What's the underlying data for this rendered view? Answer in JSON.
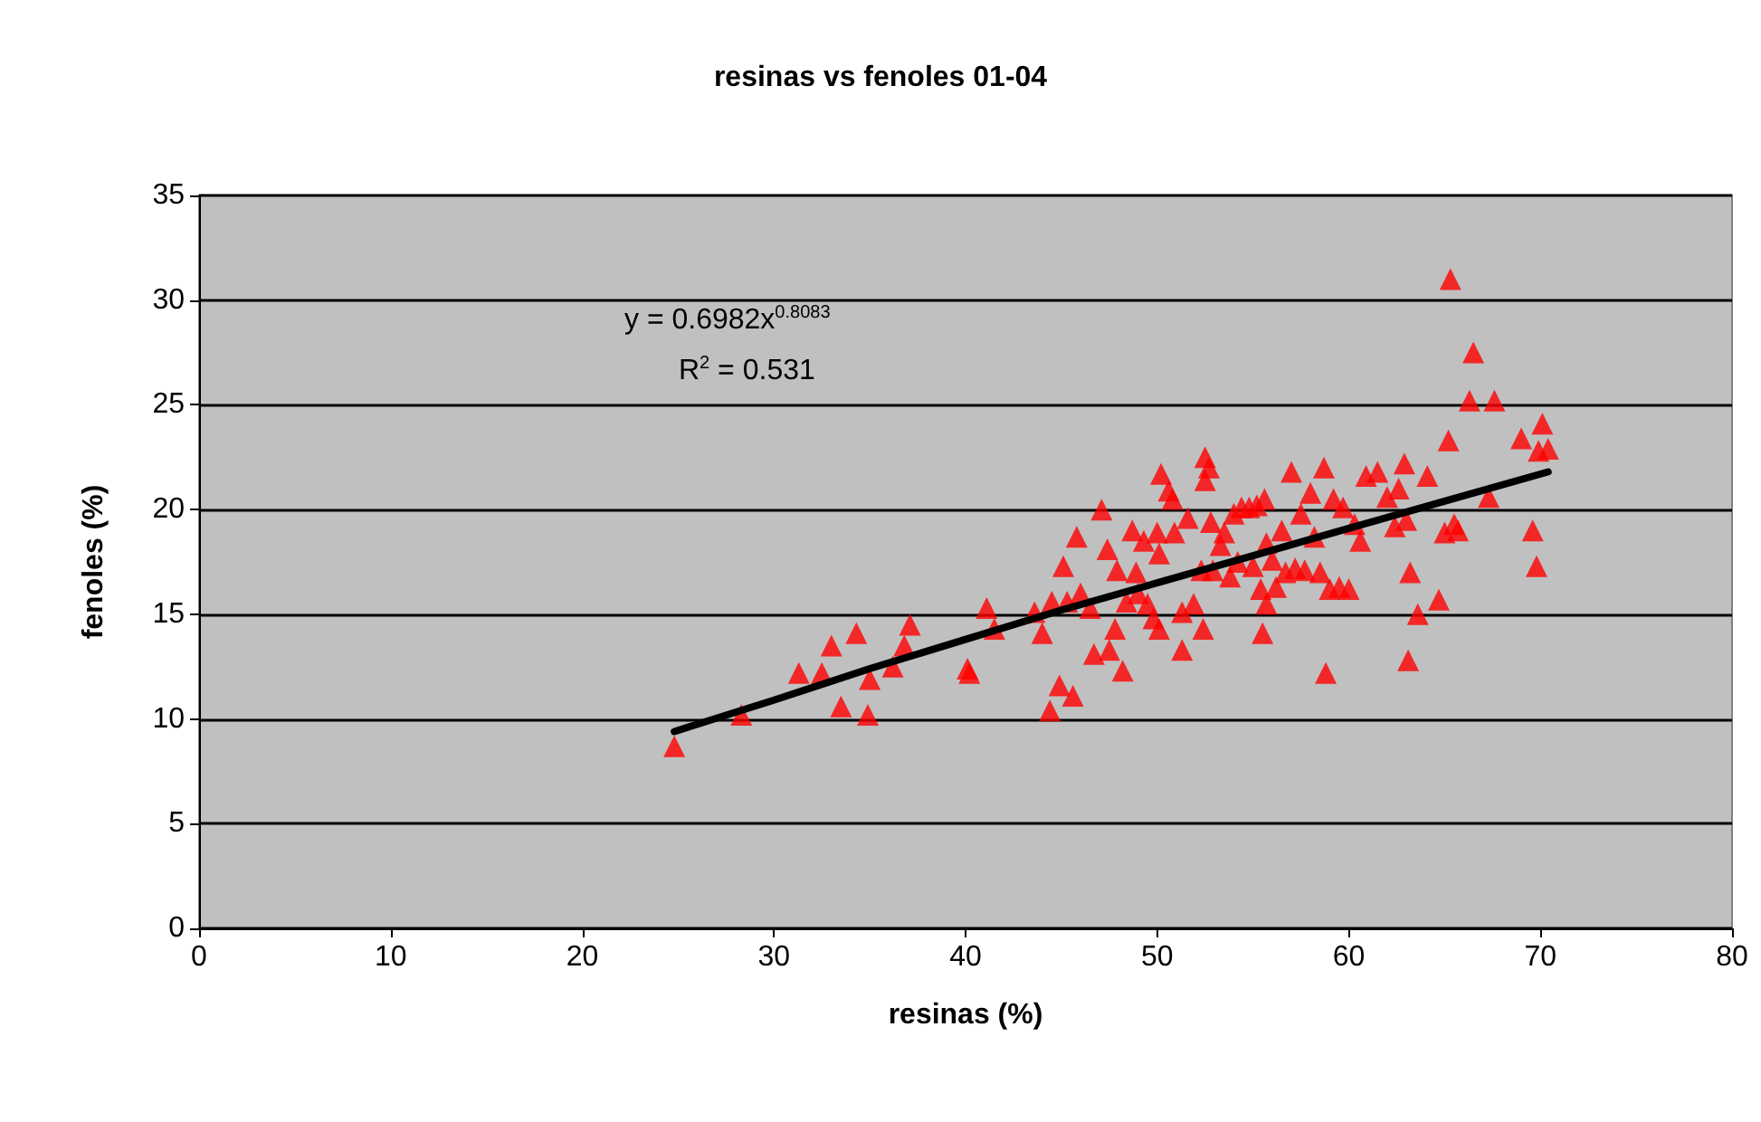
{
  "chart_data": {
    "type": "scatter",
    "title": "resinas vs fenoles 01-04",
    "xlabel": "resinas (%)",
    "ylabel": "fenoles (%)",
    "xlim": [
      0,
      80
    ],
    "xticks": [
      0,
      10,
      20,
      30,
      40,
      50,
      60,
      70,
      80
    ],
    "ylim": [
      0,
      35
    ],
    "yticks": [
      0,
      5,
      10,
      15,
      20,
      25,
      30,
      35
    ],
    "grid": "y",
    "marker": "triangle",
    "annotations": [
      "y = 0.6982x$^{0.8083}$",
      "R$^{2}$ = 0.531"
    ],
    "series": [
      {
        "color": "#ff0000",
        "x": [
          24.8,
          28.3,
          31.3,
          32.5,
          33,
          33.5,
          34.3,
          34.9,
          35,
          36.2,
          36.8,
          37.1,
          40.1,
          40.2,
          41.1,
          41.5,
          43.6,
          44,
          44.4,
          44.5,
          44.9,
          45.1,
          45.3,
          45.6,
          45.8,
          46,
          46.5,
          46.7,
          47.1,
          47.4,
          47.5,
          47.8,
          47.9,
          48.2,
          48.4,
          48.7,
          48.9,
          49,
          49.3,
          49.5,
          49.8,
          50,
          50.1,
          50.1,
          50.2,
          50.6,
          50.8,
          50.9,
          51.3,
          51.3,
          51.6,
          51.9,
          52.3,
          52.4,
          52.5,
          52.5,
          52.7,
          52.8,
          52.9,
          53.3,
          53.5,
          53.8,
          54,
          54.2,
          54.4,
          54.8,
          55,
          55.2,
          55.4,
          55.5,
          55.6,
          55.7,
          55.7,
          56,
          56.2,
          56.5,
          56.7,
          57,
          57.2,
          57.5,
          57.7,
          58,
          58.2,
          58.5,
          58.7,
          58.8,
          59,
          59.2,
          59.5,
          59.7,
          60,
          60.3,
          60.6,
          60.9,
          61.5,
          62,
          62.4,
          62.6,
          62.9,
          63,
          63.1,
          63.2,
          63.6,
          64.1,
          64.7,
          65,
          65.2,
          65.3,
          65.5,
          65.7,
          66.3,
          66.5,
          67.3,
          67.6,
          69,
          69.6,
          69.8,
          69.9,
          70.1,
          70.4
        ],
        "values": [
          8.7,
          10.2,
          12.2,
          12.2,
          13.5,
          10.6,
          14.1,
          10.2,
          11.9,
          12.5,
          13.5,
          14.5,
          12.4,
          12.2,
          15.3,
          14.3,
          15.1,
          14.1,
          10.4,
          15.6,
          11.6,
          17.3,
          15.6,
          11.1,
          18.7,
          16,
          15.3,
          13.1,
          20,
          18.1,
          13.3,
          14.3,
          17.1,
          12.3,
          15.6,
          19,
          17,
          16,
          18.5,
          15.5,
          14.8,
          18.9,
          17.9,
          14.3,
          21.7,
          20.9,
          20.5,
          18.9,
          15.1,
          13.3,
          19.6,
          15.5,
          17.1,
          14.3,
          21.4,
          22.5,
          22,
          19.4,
          17.1,
          18.3,
          18.9,
          16.8,
          19.8,
          17.5,
          20.1,
          20.1,
          17.3,
          20.2,
          16.2,
          14.1,
          20.5,
          15.5,
          18.4,
          17.6,
          16.3,
          19,
          17,
          21.8,
          17.2,
          19.8,
          17.1,
          20.8,
          18.7,
          17,
          22,
          12.2,
          16.2,
          20.5,
          16.3,
          20.1,
          16.2,
          19.3,
          18.5,
          21.6,
          21.8,
          20.6,
          19.2,
          21,
          22.2,
          19.5,
          12.8,
          17,
          15,
          21.6,
          15.7,
          18.9,
          23.3,
          31,
          19.3,
          19,
          25.2,
          27.5,
          20.6,
          25.2,
          23.4,
          19,
          17.3,
          22.8,
          24.1,
          22.9
        ]
      },
      {
        "type": "line",
        "color": "#000000",
        "marker": "none",
        "x": [
          24.8,
          30,
          35,
          40,
          45,
          50,
          55,
          60,
          65,
          70.4
        ],
        "values": [
          9.4,
          10.9,
          12.4,
          13.8,
          15.2,
          16.5,
          17.8,
          19.1,
          20.4,
          21.8
        ]
      }
    ]
  }
}
